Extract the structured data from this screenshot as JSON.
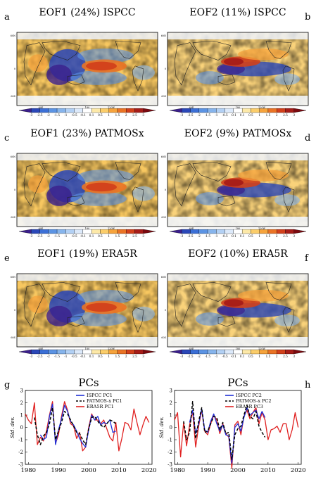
{
  "colorbar": {
    "ticks": [
      "-3",
      "-2.5",
      "-2",
      "-1.5",
      "-1",
      "-0.5",
      "-0.1",
      "0.1",
      "0.5",
      "1",
      "1.5",
      "2",
      "2.5",
      "3"
    ],
    "colors": [
      "#3b1f8c",
      "#2a47b8",
      "#3b6fd6",
      "#5b93e3",
      "#86b4ec",
      "#b2d0f4",
      "#dce9fa",
      "#ffffff",
      "#fde9a8",
      "#fbcd6a",
      "#f6a33c",
      "#ea7325",
      "#d2401b",
      "#a61c18",
      "#7b0a10"
    ]
  },
  "map_axis": {
    "lat_labels": [
      "60N",
      "0",
      "60S"
    ],
    "lon_labels": [
      "60E",
      "180",
      "120W"
    ]
  },
  "panels": [
    {
      "letter": "a",
      "title": "EOF1 (24%) ISPCC",
      "mode": 1
    },
    {
      "letter": "b",
      "title": "EOF2 (11%) ISPCC",
      "mode": 2
    },
    {
      "letter": "c",
      "title": "EOF1 (23%) PATMOSx",
      "mode": 1
    },
    {
      "letter": "d",
      "title": "EOF2 (9%) PATMOSx",
      "mode": 2
    },
    {
      "letter": "e",
      "title": "EOF1 (19%) ERA5R",
      "mode": 1
    },
    {
      "letter": "f",
      "title": "EOF2 (10%) ERA5R",
      "mode": 2
    }
  ],
  "chart_data": [
    {
      "type": "line",
      "letter": "g",
      "title": "PCs",
      "ylabel": "Std. dev.",
      "xlim": [
        1979,
        2021
      ],
      "ylim": [
        -3,
        3
      ],
      "xticks": [
        1980,
        1990,
        2000,
        2010,
        2020
      ],
      "yticks": [
        -3,
        -2,
        -1,
        0,
        1,
        2,
        3
      ],
      "series": [
        {
          "name": "ISPCC PC1",
          "color": "#1f2fd6",
          "style": "solid",
          "x": [
            1984,
            1985,
            1986,
            1987,
            1988,
            1989,
            1990,
            1991,
            1992,
            1993,
            1994,
            1995,
            1996,
            1997,
            1998,
            1999,
            2000,
            2001,
            2002,
            2003,
            2004,
            2005,
            2006,
            2007,
            2008,
            2009
          ],
          "y": [
            -0.6,
            -1.0,
            -0.8,
            0.9,
            1.9,
            -1.4,
            -0.2,
            0.7,
            1.8,
            1.3,
            0.5,
            0.2,
            -0.3,
            -0.9,
            -1.3,
            -1.6,
            -0.2,
            1.0,
            0.6,
            0.9,
            0.2,
            0.4,
            0.3,
            0.6,
            -0.4,
            -0.3
          ]
        },
        {
          "name": "PATMOS-x PC1",
          "color": "#000000",
          "style": "dashed",
          "x": [
            1982,
            1983,
            1984,
            1985,
            1986,
            1987,
            1988,
            1989,
            1990,
            1991,
            1992,
            1993,
            1994,
            1995,
            1996,
            1997,
            1998,
            1999,
            2000,
            2001,
            2002,
            2003,
            2004,
            2005,
            2006,
            2007,
            2008,
            2009
          ],
          "y": [
            0.8,
            -0.6,
            -1.4,
            -0.7,
            -0.4,
            0.3,
            1.6,
            -1.0,
            -0.3,
            0.4,
            1.3,
            1.1,
            0.6,
            0.1,
            -0.4,
            -0.5,
            -1.0,
            -1.4,
            -0.1,
            0.8,
            0.9,
            0.5,
            0.2,
            0.0,
            0.3,
            0.6,
            0.5,
            0.3
          ]
        },
        {
          "name": "ERA5R PC1",
          "color": "#e02020",
          "style": "solid",
          "x": [
            1979,
            1980,
            1981,
            1982,
            1983,
            1984,
            1985,
            1986,
            1987,
            1988,
            1989,
            1990,
            1991,
            1992,
            1993,
            1994,
            1995,
            1996,
            1997,
            1998,
            1999,
            2000,
            2001,
            2002,
            2003,
            2004,
            2005,
            2006,
            2007,
            2008,
            2009,
            2010,
            2011,
            2012,
            2013,
            2014,
            2015,
            2016,
            2017,
            2018,
            2019,
            2020
          ],
          "y": [
            1.1,
            0.6,
            0.3,
            2.0,
            -1.4,
            -0.8,
            -1.1,
            -0.3,
            1.0,
            2.1,
            -1.3,
            -0.6,
            0.9,
            2.1,
            1.4,
            0.3,
            0.1,
            -0.9,
            -0.4,
            -1.9,
            -1.6,
            0.0,
            1.1,
            0.6,
            0.6,
            0.3,
            0.6,
            -0.1,
            -0.8,
            -1.1,
            0.4,
            -1.9,
            -0.9,
            0.4,
            0.3,
            -0.2,
            1.5,
            0.4,
            -0.6,
            0.2,
            0.9,
            0.4
          ]
        }
      ]
    },
    {
      "type": "line",
      "letter": "h",
      "title": "PCs",
      "ylabel": "Std. dev.",
      "xlim": [
        1979,
        2021
      ],
      "ylim": [
        -3,
        3
      ],
      "xticks": [
        1980,
        1990,
        2000,
        2010,
        2020
      ],
      "yticks": [
        -3,
        -2,
        -1,
        0,
        1,
        2,
        3
      ],
      "series": [
        {
          "name": "ISPCC PC2",
          "color": "#1f2fd6",
          "style": "solid",
          "x": [
            1984,
            1985,
            1986,
            1987,
            1988,
            1989,
            1990,
            1991,
            1992,
            1993,
            1994,
            1995,
            1996,
            1997,
            1998,
            1999,
            2000,
            2001,
            2002,
            2003,
            2004,
            2005,
            2006,
            2007,
            2008,
            2009
          ],
          "y": [
            0.4,
            1.4,
            -0.5,
            0.3,
            1.5,
            -0.2,
            -0.4,
            0.5,
            1.1,
            0.3,
            -0.3,
            0.2,
            -0.6,
            -0.7,
            -2.9,
            0.0,
            0.3,
            -0.3,
            0.8,
            1.6,
            1.0,
            1.2,
            1.4,
            0.7,
            1.3,
            0.8
          ]
        },
        {
          "name": "PATMOS-x PC2",
          "color": "#000000",
          "style": "dashed",
          "x": [
            1982,
            1983,
            1984,
            1985,
            1986,
            1987,
            1988,
            1989,
            1990,
            1991,
            1992,
            1993,
            1994,
            1995,
            1996,
            1997,
            1998,
            1999,
            2000,
            2001,
            2002,
            2003,
            2004,
            2005,
            2006,
            2007,
            2008,
            2009
          ],
          "y": [
            0.5,
            -1.0,
            -0.4,
            2.1,
            -0.9,
            0.5,
            1.6,
            -0.4,
            -0.3,
            0.3,
            0.9,
            0.8,
            -0.2,
            0.4,
            -0.5,
            -0.4,
            -2.6,
            -0.6,
            -0.1,
            0.1,
            1.0,
            1.8,
            0.9,
            0.7,
            1.3,
            0.1,
            -0.4,
            -0.8
          ]
        },
        {
          "name": "ERA5R PC3",
          "color": "#e02020",
          "style": "solid",
          "x": [
            1979,
            1980,
            1981,
            1982,
            1983,
            1984,
            1985,
            1986,
            1987,
            1988,
            1989,
            1990,
            1991,
            1992,
            1993,
            1994,
            1995,
            1996,
            1997,
            1998,
            1999,
            2000,
            2001,
            2002,
            2003,
            2004,
            2005,
            2006,
            2007,
            2008,
            2009,
            2010,
            2011,
            2012,
            2013,
            2014,
            2015,
            2016,
            2017,
            2018,
            2019,
            2020
          ],
          "y": [
            0.6,
            1.2,
            -2.4,
            0.4,
            -1.5,
            0.2,
            1.3,
            -1.6,
            0.1,
            1.4,
            -0.3,
            -0.6,
            0.3,
            1.0,
            0.6,
            -0.5,
            0.3,
            -0.5,
            -0.8,
            -3.3,
            0.2,
            0.5,
            -0.6,
            0.9,
            1.4,
            0.7,
            1.2,
            1.6,
            0.3,
            1.2,
            0.6,
            -1.0,
            -0.2,
            -0.1,
            0.1,
            -0.4,
            0.3,
            0.3,
            -1.0,
            -0.2,
            1.2,
            0.0
          ]
        }
      ]
    }
  ]
}
